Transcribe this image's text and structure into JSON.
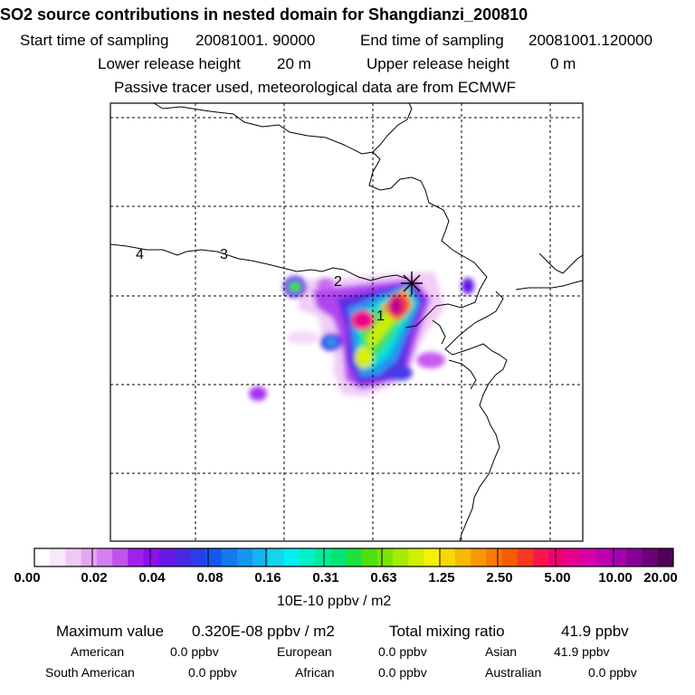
{
  "header": {
    "title": "SO2 source contributions in nested domain for Shangdianzi_200810",
    "start_label": "Start time of sampling",
    "start_value": "20081001. 90000",
    "end_label": "End time of sampling",
    "end_value": "20081001.120000",
    "lower_label": "Lower release height",
    "lower_value": "20 m",
    "upper_label": "Upper release height",
    "upper_value": "0 m",
    "note": "Passive tracer used, meteorological data are from ECMWF"
  },
  "map": {
    "region_labels": [
      "1",
      "2",
      "3",
      "4"
    ],
    "station_marker": "star-marker"
  },
  "colorbar": {
    "tick_labels": [
      "0.00",
      "0.02",
      "0.04",
      "0.08",
      "0.16",
      "0.31",
      "0.63",
      "1.25",
      "2.50",
      "5.00",
      "10.00",
      "20.00"
    ],
    "units": "10E-10 ppbv / m2",
    "colors": [
      "#ffffff",
      "#f8e8fb",
      "#f0c8f6",
      "#e4a6f2",
      "#d47ef0",
      "#c054ea",
      "#a020f0",
      "#8c10f0",
      "#6818e6",
      "#4a28e0",
      "#2c3ce8",
      "#1458f0",
      "#1478f0",
      "#1496f0",
      "#14b4f0",
      "#14d4ee",
      "#00f0f0",
      "#00f0c8",
      "#00ec9c",
      "#00e676",
      "#20e040",
      "#4ee010",
      "#78e600",
      "#a4ec00",
      "#d0f000",
      "#f8f000",
      "#f8d800",
      "#f8b800",
      "#f89800",
      "#f87a00",
      "#f85a00",
      "#f83820",
      "#f8164c",
      "#f00072",
      "#e60090",
      "#d600a4",
      "#c000b0",
      "#a400b0",
      "#880096",
      "#6c0078",
      "#500058"
    ]
  },
  "chart_data": {
    "type": "heatmap",
    "title": "SO2 source contributions in nested domain for Shangdianzi_200810",
    "legend_ticks": [
      0.0,
      0.02,
      0.04,
      0.08,
      0.16,
      0.31,
      0.63,
      1.25,
      2.5,
      5.0,
      10.0,
      20.0
    ],
    "units": "10E-10 ppbv / m2",
    "max_value": "0.320E-08 ppbv / m2",
    "total_mixing_ratio": "41.9 ppbv"
  },
  "summary": {
    "max_label": "Maximum value",
    "max_value": "0.320E-08 ppbv / m2",
    "total_label": "Total mixing ratio",
    "total_value": "41.9 ppbv",
    "regions": [
      {
        "name": "American",
        "value": "0.0 ppbv"
      },
      {
        "name": "European",
        "value": "0.0 ppbv"
      },
      {
        "name": "Asian",
        "value": "41.9 ppbv"
      },
      {
        "name": "South American",
        "value": "0.0 ppbv"
      },
      {
        "name": "African",
        "value": "0.0 ppbv"
      },
      {
        "name": "Australian",
        "value": "0.0 ppbv"
      }
    ]
  }
}
